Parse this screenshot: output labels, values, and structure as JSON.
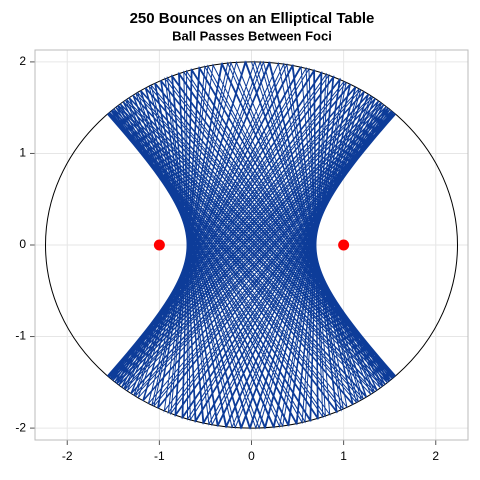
{
  "chart_data": {
    "type": "billiard",
    "title": "250 Bounces on an Elliptical Table",
    "subtitle": "Ball Passes Between Foci",
    "xlim": [
      -2.35,
      2.35
    ],
    "ylim": [
      -2.13,
      2.13
    ],
    "xticks": [
      -2,
      -1,
      0,
      1,
      2
    ],
    "yticks": [
      -2,
      -1,
      0,
      1,
      2
    ],
    "grid": true,
    "ellipse": {
      "a": 2.236,
      "b": 2,
      "color": "#000000"
    },
    "foci": {
      "x": [
        -1,
        1
      ],
      "y": [
        0,
        0
      ],
      "color": "#ff0000"
    },
    "trajectory": {
      "start": [
        0,
        2
      ],
      "direction": [
        0.313,
        -0.95
      ],
      "bounces": 250,
      "color": "#0d3c99"
    }
  }
}
